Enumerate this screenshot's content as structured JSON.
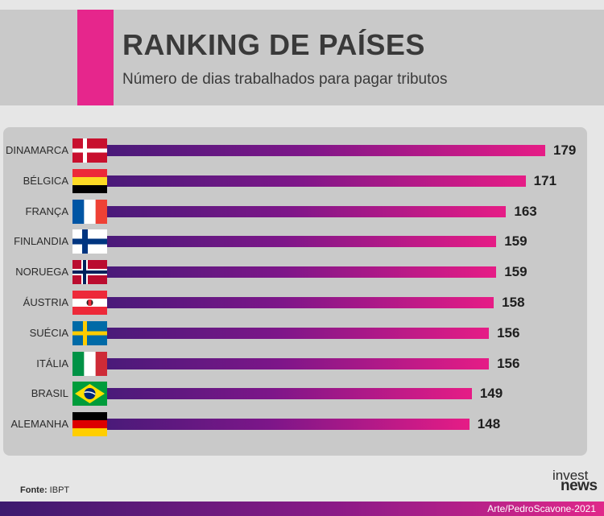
{
  "header": {
    "title": "RANKING DE PAÍSES",
    "subtitle": "Número de dias trabalhados para pagar tributos"
  },
  "colors": {
    "accent": "#e6268c",
    "bar_start": "#4a1a79",
    "bar_end": "#e61c86",
    "panel": "#c9c9c9"
  },
  "chart_data": {
    "type": "bar",
    "orientation": "horizontal",
    "title": "RANKING DE PAÍSES",
    "subtitle": "Número de dias trabalhados para pagar tributos",
    "categories": [
      "DINAMARCA",
      "BÉLGICA",
      "FRANÇA",
      "FINLANDIA",
      "NORUEGA",
      "ÁUSTRIA",
      "SUÉCIA",
      "ITÁLIA",
      "BRASIL",
      "ALEMANHA"
    ],
    "values": [
      179,
      171,
      163,
      159,
      159,
      158,
      156,
      156,
      149,
      148
    ],
    "value_labels": [
      "179",
      "171",
      "163",
      "159",
      "159",
      "158",
      "156",
      "156",
      "149",
      "148"
    ],
    "flags": [
      "denmark-flag-icon",
      "belgium-flag-icon",
      "france-flag-icon",
      "finland-flag-icon",
      "norway-flag-icon",
      "austria-flag-icon",
      "sweden-flag-icon",
      "italy-flag-icon",
      "brazil-flag-icon",
      "germany-flag-icon"
    ],
    "grid": false,
    "legend": "none"
  },
  "footer": {
    "source_label": "Fonte:",
    "source_value": "IBPT",
    "logo_line1": "invest",
    "logo_line2": "news",
    "credit": "Arte/PedroScavone-2021"
  }
}
